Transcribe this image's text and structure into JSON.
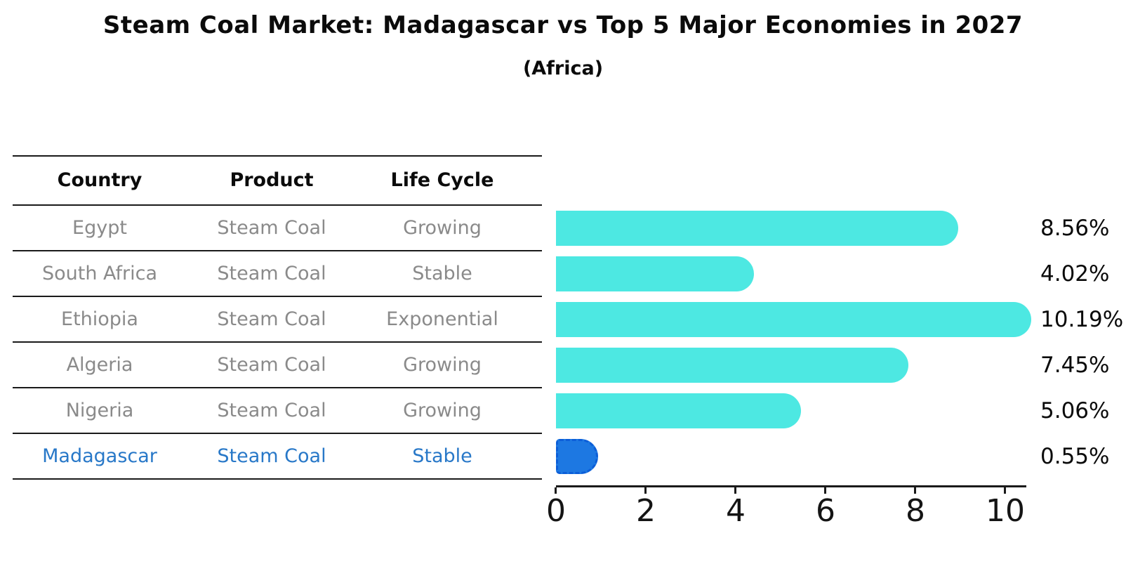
{
  "title": "Steam Coal Market: Madagascar vs Top 5 Major Economies in 2027",
  "subtitle": "(Africa)",
  "table": {
    "headers": [
      "Country",
      "Product",
      "Life Cycle"
    ],
    "rows": [
      {
        "country": "Egypt",
        "product": "Steam Coal",
        "life_cycle": "Growing",
        "share": "8.56%",
        "highlight": false
      },
      {
        "country": "South Africa",
        "product": "Steam Coal",
        "life_cycle": "Stable",
        "share": "4.02%",
        "highlight": false
      },
      {
        "country": "Ethiopia",
        "product": "Steam Coal",
        "life_cycle": "Exponential",
        "share": "10.19%",
        "highlight": false
      },
      {
        "country": "Algeria",
        "product": "Steam Coal",
        "life_cycle": "Growing",
        "share": "7.45%",
        "highlight": false
      },
      {
        "country": "Nigeria",
        "product": "Steam Coal",
        "life_cycle": "Growing",
        "share": "5.06%",
        "highlight": false
      },
      {
        "country": "Madagascar",
        "product": "Steam Coal",
        "life_cycle": "Stable",
        "share": "0.55%",
        "highlight": true
      }
    ]
  },
  "chart_data": {
    "type": "bar",
    "orientation": "horizontal",
    "title": "Steam Coal Market: Madagascar vs Top 5 Major Economies in 2027",
    "subtitle": "(Africa)",
    "categories": [
      "Egypt",
      "South Africa",
      "Ethiopia",
      "Algeria",
      "Nigeria",
      "Madagascar"
    ],
    "values": [
      8.56,
      4.02,
      10.19,
      7.45,
      5.06,
      0.55
    ],
    "value_labels": [
      "8.56%",
      "4.02%",
      "10.19%",
      "7.45%",
      "5.06%",
      "0.55%"
    ],
    "xlabel": "",
    "ylabel": "",
    "xlim": [
      0,
      10.7
    ],
    "x_ticks": [
      0,
      2,
      4,
      6,
      8,
      10
    ],
    "grid": false,
    "legend": false,
    "highlight_index": 5
  },
  "colors": {
    "bar": "#4de8e2",
    "highlight_bar": "#1d78e2",
    "highlight_bar_border": "#0c5ed8",
    "highlight_text": "#2878c8",
    "table_text": "#8a8a8a",
    "heading_text": "#0b0b0b"
  }
}
